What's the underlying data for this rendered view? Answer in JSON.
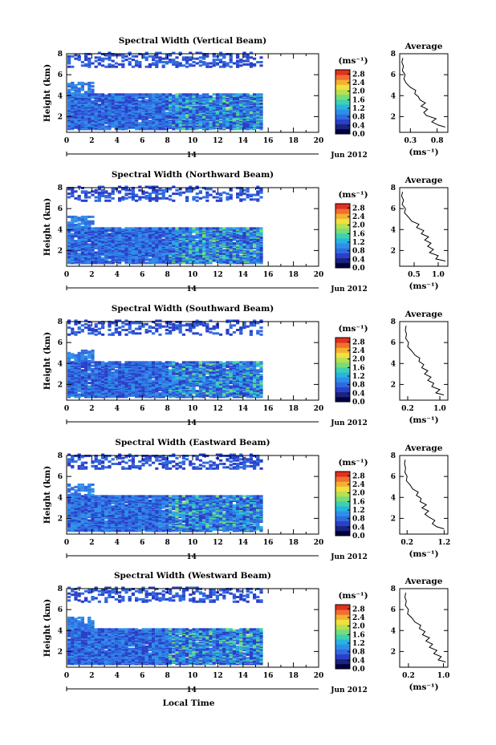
{
  "chart_data": {
    "type": "heatmap",
    "common": {
      "x_ticks": [
        "0",
        "2",
        "4",
        "6",
        "8",
        "10",
        "12",
        "14",
        "16",
        "18",
        "20"
      ],
      "xlim": [
        0,
        20
      ],
      "date_label": "Jun 2012",
      "day_label": "14",
      "y_ticks": [
        "2",
        "4",
        "6",
        "8"
      ],
      "ylim": [
        0.5,
        8
      ],
      "ylabel": "Height (km)",
      "xlabel": "Local Time",
      "colorbar": {
        "unit_label": "(ms⁻¹)",
        "ticks": [
          "0.0",
          "0.4",
          "0.8",
          "1.2",
          "1.6",
          "2.0",
          "2.4",
          "2.8"
        ],
        "range": [
          0.0,
          3.0
        ],
        "colors": [
          "#000040",
          "#1a237e",
          "#2b3fc9",
          "#2f6ae0",
          "#2f8fe8",
          "#27b4e0",
          "#3fd0b0",
          "#78dc7a",
          "#b8e050",
          "#f0e040",
          "#f5b030",
          "#f07030",
          "#e03020"
        ]
      },
      "avg_title": "Average",
      "avg_unit": "(ms⁻¹)",
      "avg_y_ticks": [
        "2",
        "4",
        "6",
        "8"
      ]
    },
    "panels": [
      {
        "title": "Spectral Width (Vertical Beam)",
        "avg_x_ticks": [
          "0.3",
          "0.8"
        ],
        "avg_xlim": [
          0.1,
          1.0
        ],
        "avg_profile": [
          [
            0.95,
            1.0
          ],
          [
            0.82,
            1.2
          ],
          [
            0.7,
            1.5
          ],
          [
            0.78,
            1.8
          ],
          [
            0.6,
            2.1
          ],
          [
            0.55,
            2.4
          ],
          [
            0.62,
            2.7
          ],
          [
            0.5,
            3.0
          ],
          [
            0.58,
            3.3
          ],
          [
            0.48,
            3.6
          ],
          [
            0.45,
            3.9
          ],
          [
            0.38,
            4.2
          ],
          [
            0.4,
            4.5
          ],
          [
            0.3,
            4.8
          ],
          [
            0.22,
            5.2
          ],
          [
            0.18,
            5.6
          ],
          [
            0.2,
            6.0
          ],
          [
            0.15,
            6.4
          ],
          [
            0.17,
            6.8
          ],
          [
            0.14,
            7.2
          ],
          [
            0.16,
            7.6
          ]
        ]
      },
      {
        "title": "Spectral Width (Northward Beam)",
        "avg_x_ticks": [
          "0.5",
          "1.0"
        ],
        "avg_xlim": [
          0.2,
          1.2
        ],
        "avg_profile": [
          [
            1.15,
            1.0
          ],
          [
            0.95,
            1.2
          ],
          [
            1.0,
            1.5
          ],
          [
            0.82,
            1.8
          ],
          [
            0.9,
            2.1
          ],
          [
            0.78,
            2.4
          ],
          [
            0.85,
            2.7
          ],
          [
            0.72,
            3.0
          ],
          [
            0.8,
            3.3
          ],
          [
            0.65,
            3.6
          ],
          [
            0.7,
            3.9
          ],
          [
            0.55,
            4.2
          ],
          [
            0.6,
            4.5
          ],
          [
            0.45,
            4.8
          ],
          [
            0.38,
            5.2
          ],
          [
            0.3,
            5.6
          ],
          [
            0.32,
            6.0
          ],
          [
            0.25,
            6.4
          ],
          [
            0.28,
            6.8
          ],
          [
            0.24,
            7.2
          ],
          [
            0.26,
            7.6
          ]
        ]
      },
      {
        "title": "Spectral Width (Southward Beam)",
        "avg_x_ticks": [
          "0.2",
          "1.0"
        ],
        "avg_xlim": [
          0.0,
          1.2
        ],
        "avg_profile": [
          [
            1.1,
            1.0
          ],
          [
            0.9,
            1.2
          ],
          [
            1.0,
            1.5
          ],
          [
            0.8,
            1.8
          ],
          [
            0.85,
            2.1
          ],
          [
            0.7,
            2.4
          ],
          [
            0.78,
            2.7
          ],
          [
            0.62,
            3.0
          ],
          [
            0.7,
            3.3
          ],
          [
            0.55,
            3.6
          ],
          [
            0.6,
            3.9
          ],
          [
            0.48,
            4.2
          ],
          [
            0.5,
            4.5
          ],
          [
            0.38,
            4.8
          ],
          [
            0.3,
            5.2
          ],
          [
            0.2,
            5.6
          ],
          [
            0.22,
            6.0
          ],
          [
            0.15,
            6.4
          ],
          [
            0.17,
            6.8
          ],
          [
            0.14,
            7.2
          ],
          [
            0.16,
            7.6
          ]
        ]
      },
      {
        "title": "Spectral Width (Eastward Beam)",
        "avg_x_ticks": [
          "0.2",
          "1.2"
        ],
        "avg_xlim": [
          0.0,
          1.3
        ],
        "avg_profile": [
          [
            1.2,
            1.0
          ],
          [
            1.0,
            1.2
          ],
          [
            0.88,
            1.5
          ],
          [
            0.95,
            1.8
          ],
          [
            0.8,
            2.1
          ],
          [
            0.68,
            2.4
          ],
          [
            0.78,
            2.7
          ],
          [
            0.6,
            3.0
          ],
          [
            0.72,
            3.3
          ],
          [
            0.55,
            3.6
          ],
          [
            0.58,
            3.9
          ],
          [
            0.45,
            4.2
          ],
          [
            0.5,
            4.5
          ],
          [
            0.35,
            4.8
          ],
          [
            0.28,
            5.2
          ],
          [
            0.18,
            5.6
          ],
          [
            0.2,
            6.0
          ],
          [
            0.14,
            6.4
          ],
          [
            0.16,
            6.8
          ],
          [
            0.13,
            7.2
          ],
          [
            0.15,
            7.6
          ]
        ]
      },
      {
        "title": "Spectral Width (Westward Beam)",
        "avg_x_ticks": [
          "0.2",
          "1.0"
        ],
        "avg_xlim": [
          0.0,
          1.1
        ],
        "avg_profile": [
          [
            1.05,
            1.0
          ],
          [
            0.88,
            1.2
          ],
          [
            0.95,
            1.5
          ],
          [
            0.78,
            1.8
          ],
          [
            0.85,
            2.1
          ],
          [
            0.68,
            2.4
          ],
          [
            0.75,
            2.7
          ],
          [
            0.6,
            3.0
          ],
          [
            0.68,
            3.3
          ],
          [
            0.52,
            3.6
          ],
          [
            0.58,
            3.9
          ],
          [
            0.45,
            4.2
          ],
          [
            0.48,
            4.5
          ],
          [
            0.35,
            4.8
          ],
          [
            0.28,
            5.2
          ],
          [
            0.18,
            5.6
          ],
          [
            0.2,
            6.0
          ],
          [
            0.13,
            6.4
          ],
          [
            0.15,
            6.8
          ],
          [
            0.12,
            7.2
          ],
          [
            0.14,
            7.6
          ]
        ]
      }
    ]
  }
}
